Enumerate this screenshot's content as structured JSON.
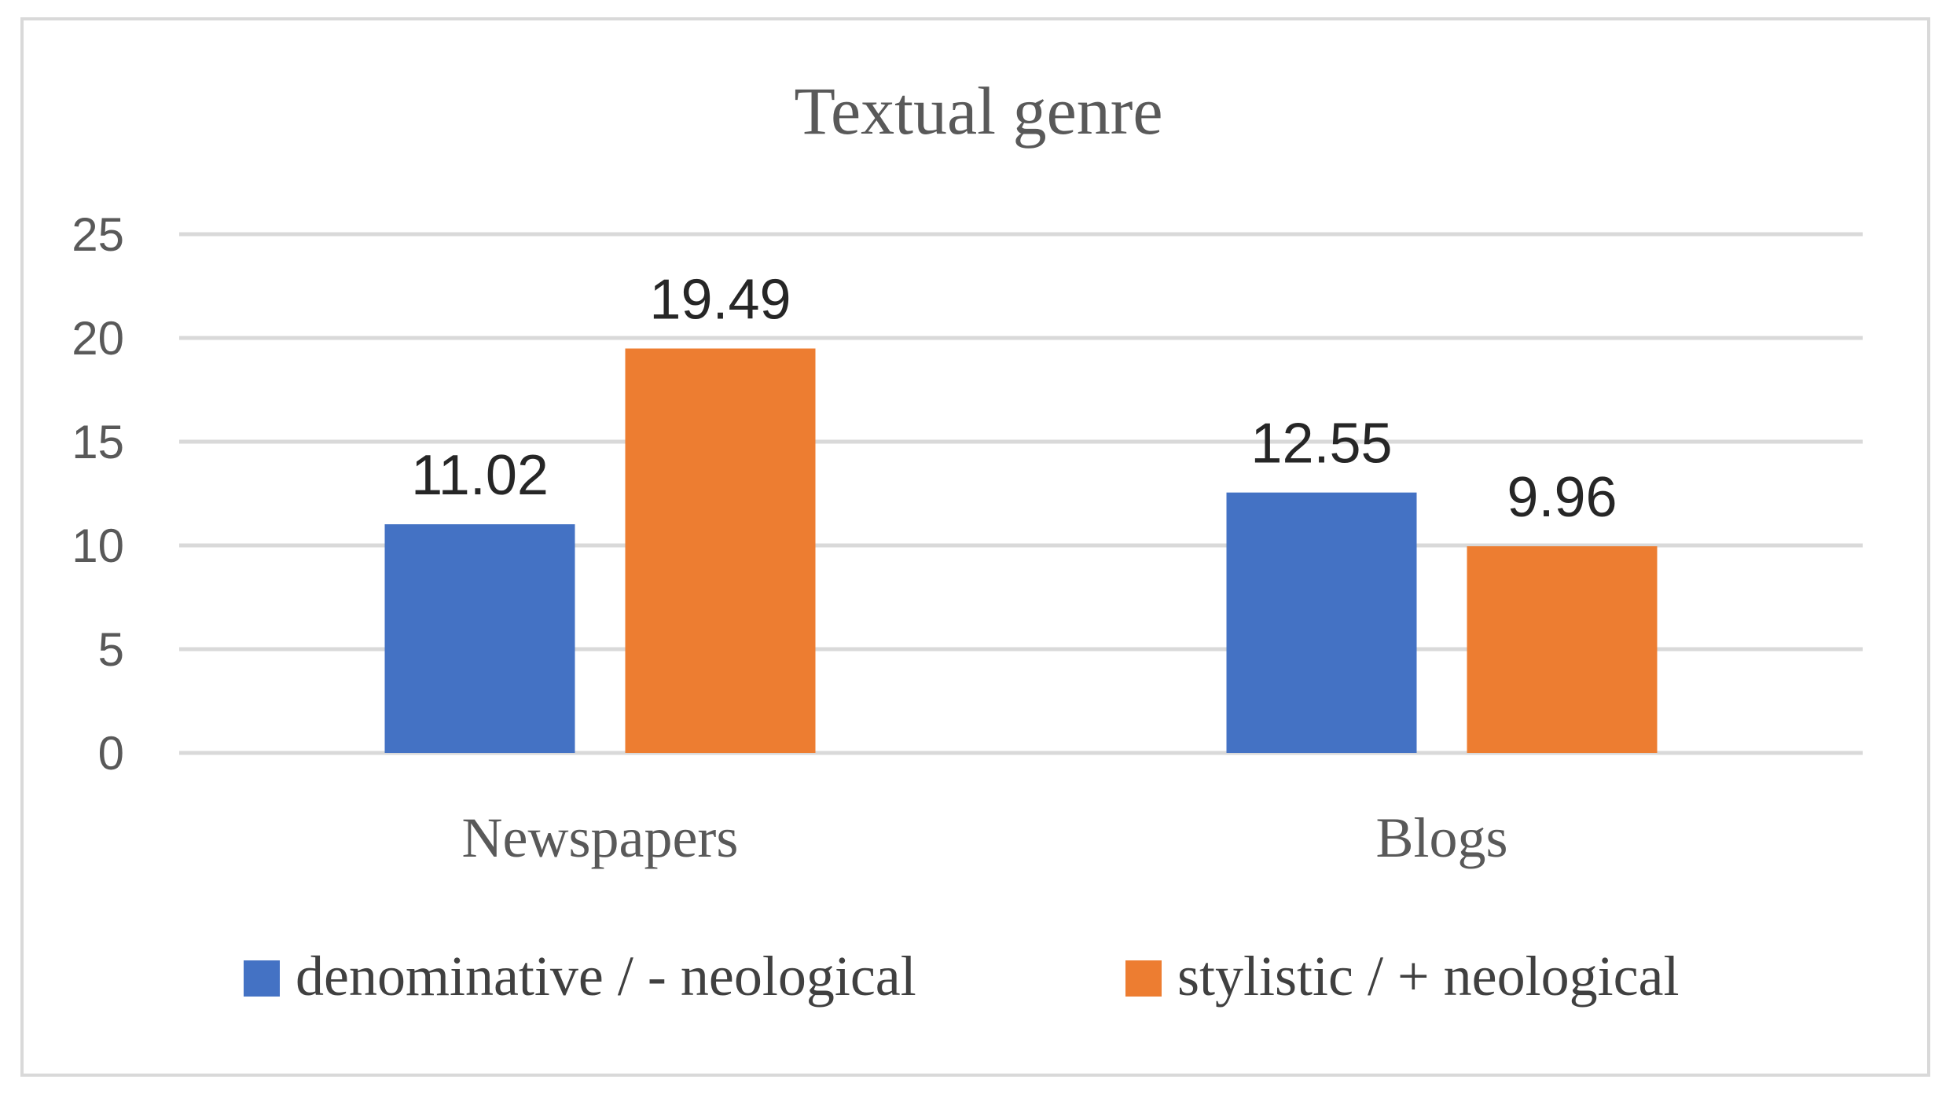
{
  "chart_data": {
    "type": "bar",
    "title": "Textual genre",
    "categories": [
      "Newspapers",
      "Blogs"
    ],
    "series": [
      {
        "name": "denominative / - neological",
        "values": [
          11.02,
          12.55
        ],
        "color": "#4472c4"
      },
      {
        "name": "stylistic / + neological",
        "values": [
          19.49,
          9.96
        ],
        "color": "#ed7d31"
      }
    ],
    "ylim": [
      0,
      25
    ],
    "yticks": [
      0,
      5,
      10,
      15,
      20,
      25
    ],
    "grid": true,
    "legend_position": "bottom",
    "data_labels": true
  }
}
